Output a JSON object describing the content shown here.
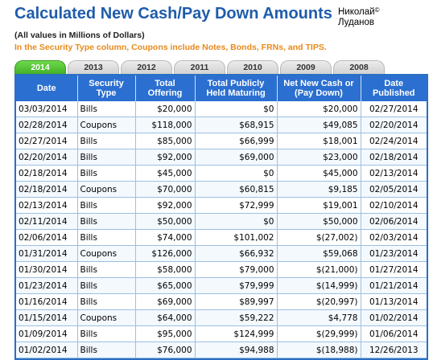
{
  "title": "Calculated New Cash/Pay Down Amounts",
  "author": {
    "name_line1": "Николай",
    "copyright": "©",
    "name_line2": "Луданов"
  },
  "notes": {
    "line1": "(All values in Millions of Dollars)",
    "line2": "In the Security Type column, Coupons include Notes, Bonds, FRNs, and TIPS."
  },
  "tabs": [
    {
      "label": "2014",
      "active": true
    },
    {
      "label": "2013",
      "active": false
    },
    {
      "label": "2012",
      "active": false
    },
    {
      "label": "2011",
      "active": false
    },
    {
      "label": "2010",
      "active": false
    },
    {
      "label": "2009",
      "active": false
    },
    {
      "label": "2008",
      "active": false
    }
  ],
  "columns": [
    "Date",
    "Security Type",
    "Total Offering",
    "Total Publicly Held Maturing",
    "Net New Cash or (Pay Down)",
    "Date Published"
  ],
  "rows": [
    [
      "03/03/2014",
      "Bills",
      "$20,000",
      "$0",
      "$20,000",
      "02/27/2014"
    ],
    [
      "02/28/2014",
      "Coupons",
      "$118,000",
      "$68,915",
      "$49,085",
      "02/20/2014"
    ],
    [
      "02/27/2014",
      "Bills",
      "$85,000",
      "$66,999",
      "$18,001",
      "02/24/2014"
    ],
    [
      "02/20/2014",
      "Bills",
      "$92,000",
      "$69,000",
      "$23,000",
      "02/18/2014"
    ],
    [
      "02/18/2014",
      "Bills",
      "$45,000",
      "$0",
      "$45,000",
      "02/13/2014"
    ],
    [
      "02/18/2014",
      "Coupons",
      "$70,000",
      "$60,815",
      "$9,185",
      "02/05/2014"
    ],
    [
      "02/13/2014",
      "Bills",
      "$92,000",
      "$72,999",
      "$19,001",
      "02/10/2014"
    ],
    [
      "02/11/2014",
      "Bills",
      "$50,000",
      "$0",
      "$50,000",
      "02/06/2014"
    ],
    [
      "02/06/2014",
      "Bills",
      "$74,000",
      "$101,002",
      "$(27,002)",
      "02/03/2014"
    ],
    [
      "01/31/2014",
      "Coupons",
      "$126,000",
      "$66,932",
      "$59,068",
      "01/23/2014"
    ],
    [
      "01/30/2014",
      "Bills",
      "$58,000",
      "$79,000",
      "$(21,000)",
      "01/27/2014"
    ],
    [
      "01/23/2014",
      "Bills",
      "$65,000",
      "$79,999",
      "$(14,999)",
      "01/21/2014"
    ],
    [
      "01/16/2014",
      "Bills",
      "$69,000",
      "$89,997",
      "$(20,997)",
      "01/13/2014"
    ],
    [
      "01/15/2014",
      "Coupons",
      "$64,000",
      "$59,222",
      "$4,778",
      "01/02/2014"
    ],
    [
      "01/09/2014",
      "Bills",
      "$95,000",
      "$124,999",
      "$(29,999)",
      "01/06/2014"
    ],
    [
      "01/02/2014",
      "Bills",
      "$76,000",
      "$94,988",
      "$(18,988)",
      "12/26/2013"
    ]
  ]
}
